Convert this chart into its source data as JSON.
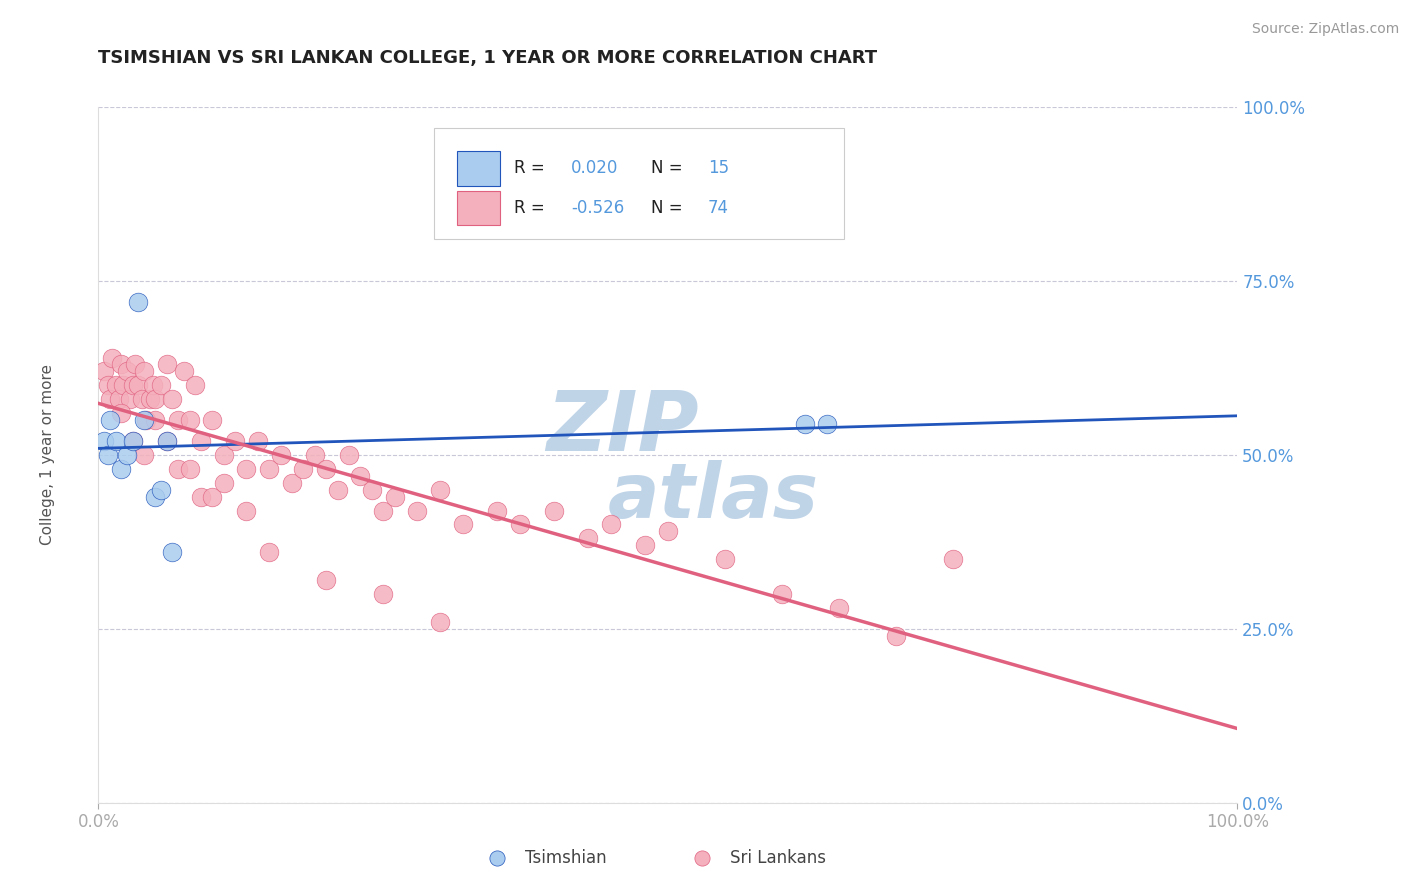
{
  "title": "TSIMSHIAN VS SRI LANKAN COLLEGE, 1 YEAR OR MORE CORRELATION CHART",
  "source_text": "Source: ZipAtlas.com",
  "ylabel": "College, 1 year or more",
  "xlim": [
    0.0,
    1.0
  ],
  "ylim": [
    0.0,
    1.0
  ],
  "ytick_vals": [
    0.0,
    0.25,
    0.5,
    0.75,
    1.0
  ],
  "ytick_labels": [
    "0.0%",
    "25.0%",
    "50.0%",
    "75.0%",
    "100.0%"
  ],
  "xtick_vals": [
    0.0,
    1.0
  ],
  "xtick_labels": [
    "0.0%",
    "100.0%"
  ],
  "grid_color": "#c8c8d8",
  "tsimshian_color": "#aaccee",
  "sri_lankan_color": "#f4b0bc",
  "tsimshian_line_color": "#2255bb",
  "sri_lankan_line_color": "#e06080",
  "tick_label_color": "#5599dd",
  "R_tsimshian": 0.02,
  "N_tsimshian": 15,
  "R_sri_lankan": -0.526,
  "N_sri_lankan": 74,
  "tsimshian_x": [
    0.005,
    0.008,
    0.01,
    0.015,
    0.02,
    0.025,
    0.03,
    0.035,
    0.04,
    0.05,
    0.06,
    0.62,
    0.64,
    0.065,
    0.055
  ],
  "tsimshian_y": [
    0.52,
    0.5,
    0.55,
    0.52,
    0.48,
    0.5,
    0.52,
    0.72,
    0.55,
    0.44,
    0.52,
    0.545,
    0.545,
    0.36,
    0.45
  ],
  "sri_lankan_x": [
    0.005,
    0.008,
    0.01,
    0.012,
    0.015,
    0.018,
    0.02,
    0.022,
    0.025,
    0.028,
    0.03,
    0.032,
    0.035,
    0.038,
    0.04,
    0.042,
    0.045,
    0.048,
    0.05,
    0.055,
    0.06,
    0.065,
    0.07,
    0.075,
    0.08,
    0.085,
    0.09,
    0.1,
    0.11,
    0.12,
    0.13,
    0.14,
    0.15,
    0.16,
    0.17,
    0.18,
    0.19,
    0.2,
    0.21,
    0.22,
    0.23,
    0.24,
    0.25,
    0.26,
    0.28,
    0.3,
    0.32,
    0.35,
    0.37,
    0.4,
    0.43,
    0.45,
    0.48,
    0.5,
    0.55,
    0.6,
    0.65,
    0.7,
    0.75,
    0.02,
    0.03,
    0.04,
    0.05,
    0.06,
    0.07,
    0.08,
    0.09,
    0.1,
    0.11,
    0.13,
    0.15,
    0.2,
    0.25,
    0.3
  ],
  "sri_lankan_y": [
    0.62,
    0.6,
    0.58,
    0.64,
    0.6,
    0.58,
    0.63,
    0.6,
    0.62,
    0.58,
    0.6,
    0.63,
    0.6,
    0.58,
    0.62,
    0.55,
    0.58,
    0.6,
    0.58,
    0.6,
    0.63,
    0.58,
    0.55,
    0.62,
    0.55,
    0.6,
    0.52,
    0.55,
    0.5,
    0.52,
    0.48,
    0.52,
    0.48,
    0.5,
    0.46,
    0.48,
    0.5,
    0.48,
    0.45,
    0.5,
    0.47,
    0.45,
    0.42,
    0.44,
    0.42,
    0.45,
    0.4,
    0.42,
    0.4,
    0.42,
    0.38,
    0.4,
    0.37,
    0.39,
    0.35,
    0.3,
    0.28,
    0.24,
    0.35,
    0.56,
    0.52,
    0.5,
    0.55,
    0.52,
    0.48,
    0.48,
    0.44,
    0.44,
    0.46,
    0.42,
    0.36,
    0.32,
    0.3,
    0.26
  ],
  "tsim_line_x0": 0.0,
  "tsim_line_x1": 1.0,
  "tsim_line_y0": 0.518,
  "tsim_line_y1": 0.535,
  "sri_line_x0": 0.0,
  "sri_line_x1": 1.0,
  "sri_line_y0": 0.655,
  "sri_line_y1": 0.115,
  "watermark_zip": "ZIP",
  "watermark_atlas": "atlas",
  "watermark_color": "#c0d4e8",
  "legend_label_tsimshian": "Tsimshian",
  "legend_label_sri_lankan": "Sri Lankans"
}
